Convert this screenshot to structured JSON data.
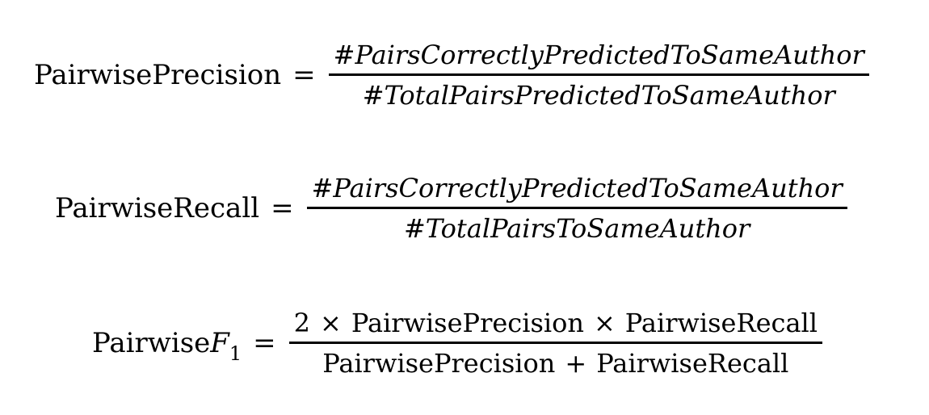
{
  "eq1": {
    "lhs": "PairwisePrecision",
    "equals": "=",
    "numerator": "#PairsCorrectlyPredictedToSameAuthor",
    "denominator": "#TotalPairsPredictedToSameAuthor"
  },
  "eq2": {
    "lhs": "PairwiseRecall",
    "equals": "=",
    "numerator": "#PairsCorrectlyPredictedToSameAuthor",
    "denominator": "#TotalPairsToSameAuthor"
  },
  "eq3": {
    "lhs_word": "Pairwise",
    "lhs_var": "F",
    "lhs_sub": "1",
    "equals": "=",
    "num_coef": "2",
    "times": "×",
    "num_term1": "PairwisePrecision",
    "num_term2": "PairwiseRecall",
    "plus": "+",
    "den_term1": "PairwisePrecision",
    "den_term2": "PairwiseRecall"
  }
}
